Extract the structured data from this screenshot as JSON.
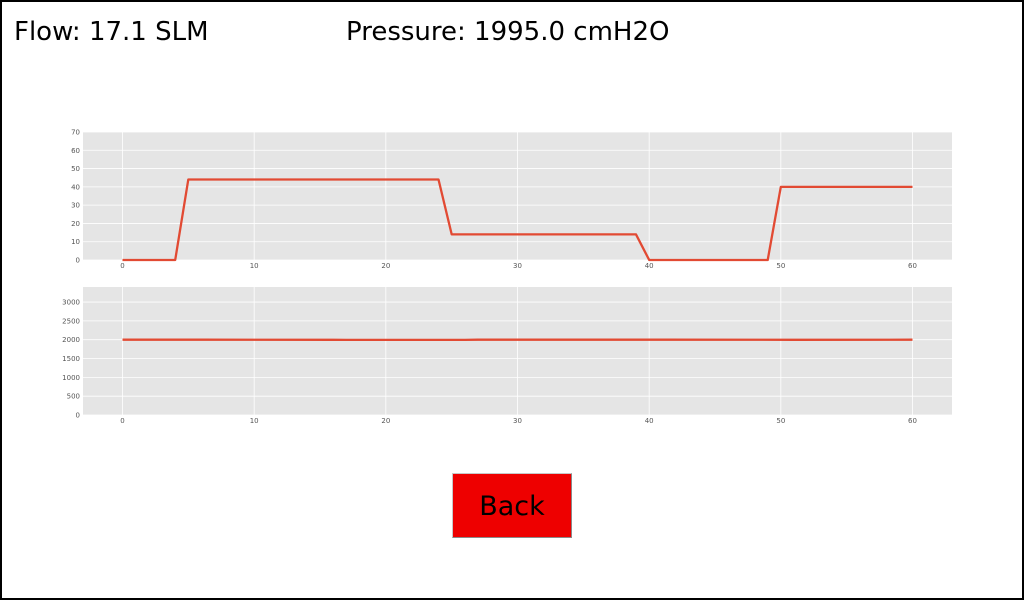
{
  "readouts": {
    "flow": "Flow: 17.1 SLM",
    "pressure": "Pressure: 1995.0 cmH2O"
  },
  "buttons": {
    "back_label": "Back"
  },
  "colors": {
    "line": "#e24a33",
    "plot_bg": "#e5e5e5",
    "grid": "#ffffff",
    "button": "#ee0000"
  },
  "chart_data": [
    {
      "type": "line",
      "series": [
        {
          "x": [
            0,
            4,
            5,
            24,
            25,
            39,
            40,
            49,
            50,
            60
          ],
          "values": [
            0,
            0,
            44,
            44,
            14,
            14,
            0,
            0,
            40,
            40
          ]
        }
      ],
      "xlim": [
        -3,
        63
      ],
      "ylim": [
        0,
        70
      ],
      "xticks": [
        0,
        10,
        20,
        30,
        40,
        50,
        60
      ],
      "yticks": [
        0,
        10,
        20,
        30,
        40,
        50,
        60,
        70
      ],
      "grid": true
    },
    {
      "type": "line",
      "series": [
        {
          "x": [
            0,
            6,
            16,
            17,
            26,
            27,
            41,
            51,
            60
          ],
          "values": [
            2000,
            2000,
            1998,
            1995,
            1995,
            2000,
            2000,
            1998,
            2000
          ]
        }
      ],
      "xlim": [
        -3,
        63
      ],
      "ylim": [
        0,
        3400
      ],
      "xticks": [
        0,
        10,
        20,
        30,
        40,
        50,
        60
      ],
      "yticks": [
        0,
        500,
        1000,
        1500,
        2000,
        2500,
        3000
      ],
      "grid": true
    }
  ]
}
